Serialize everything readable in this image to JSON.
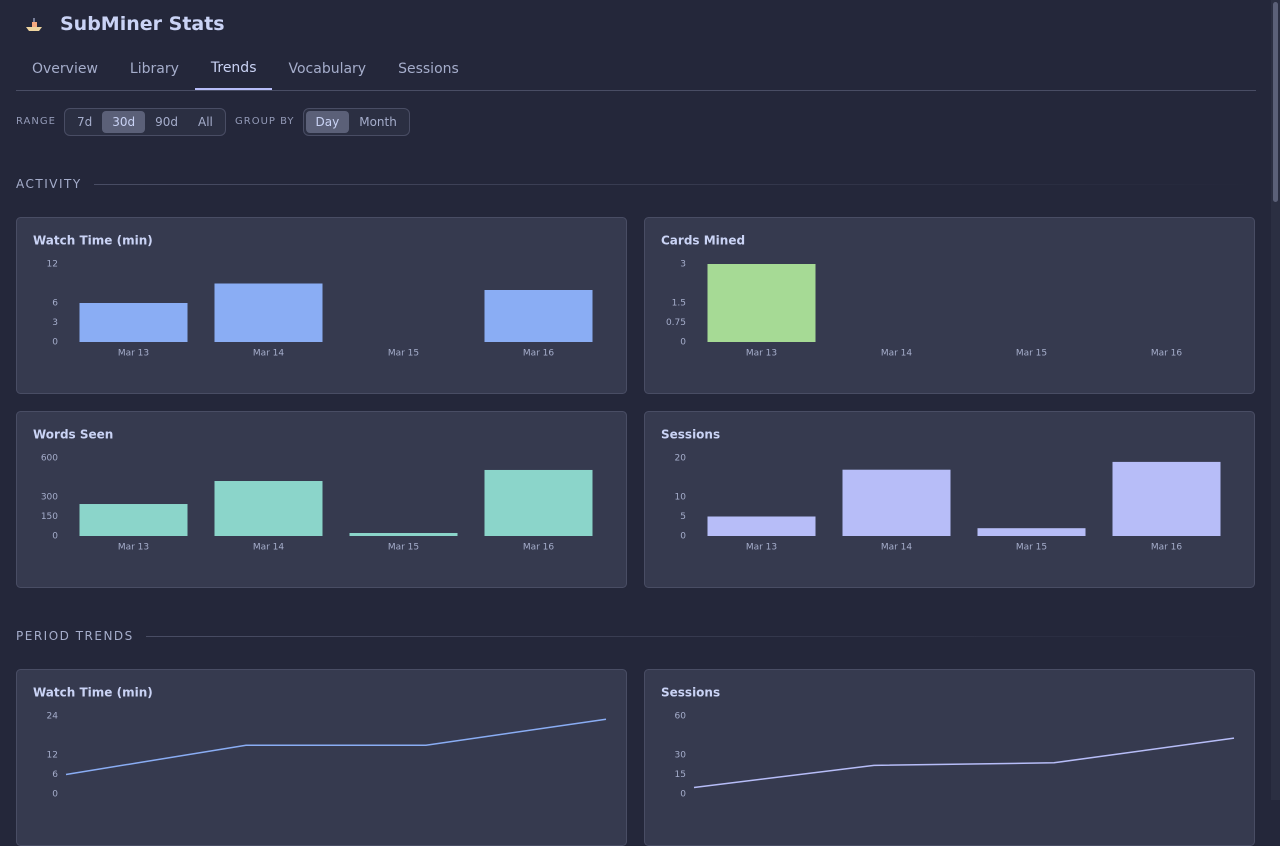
{
  "header": {
    "title": "SubMiner Stats"
  },
  "tabs": [
    "Overview",
    "Library",
    "Trends",
    "Vocabulary",
    "Sessions"
  ],
  "controls": {
    "range_label": "RANGE",
    "range_options": [
      "7d",
      "30d",
      "90d",
      "All"
    ],
    "group_by_label": "GROUP BY",
    "group_by_options": [
      "Day",
      "Month"
    ]
  },
  "sections": [
    "ACTIVITY",
    "PERIOD TRENDS"
  ],
  "chart_data": [
    {
      "type": "bar",
      "title": "Watch Time (min)",
      "categories": [
        "Mar 13",
        "Mar 14",
        "Mar 15",
        "Mar 16"
      ],
      "values": [
        6,
        9,
        0,
        8
      ],
      "color": "#8aadf4",
      "ylim": [
        0,
        12
      ],
      "yticks": [
        0,
        3,
        6,
        12
      ]
    },
    {
      "type": "bar",
      "title": "Cards Mined",
      "categories": [
        "Mar 13",
        "Mar 14",
        "Mar 15",
        "Mar 16"
      ],
      "values": [
        3,
        0,
        0,
        0
      ],
      "color": "#a6da95",
      "ylim": [
        0,
        3
      ],
      "yticks": [
        0,
        0.75,
        1.5,
        3
      ]
    },
    {
      "type": "bar",
      "title": "Words Seen",
      "categories": [
        "Mar 13",
        "Mar 14",
        "Mar 15",
        "Mar 16"
      ],
      "values": [
        246,
        423,
        23,
        508
      ],
      "color": "#8bd5ca",
      "ylim": [
        0,
        600
      ],
      "yticks": [
        0,
        150,
        300,
        600
      ]
    },
    {
      "type": "bar",
      "title": "Sessions",
      "categories": [
        "Mar 13",
        "Mar 14",
        "Mar 15",
        "Mar 16"
      ],
      "values": [
        5,
        17,
        2,
        19
      ],
      "color": "#b7bdf8",
      "ylim": [
        0,
        20
      ],
      "yticks": [
        0,
        5,
        10,
        20
      ]
    },
    {
      "type": "line",
      "title": "Watch Time (min)",
      "values": [
        6,
        15,
        15,
        23
      ],
      "color": "#8aadf4",
      "ylim": [
        0,
        24
      ],
      "yticks": [
        0,
        6,
        12,
        24
      ]
    },
    {
      "type": "line",
      "title": "Sessions",
      "values": [
        5,
        22,
        24,
        43
      ],
      "color": "#b7bdf8",
      "ylim": [
        0,
        60
      ],
      "yticks": [
        0,
        15,
        30,
        60
      ]
    }
  ]
}
